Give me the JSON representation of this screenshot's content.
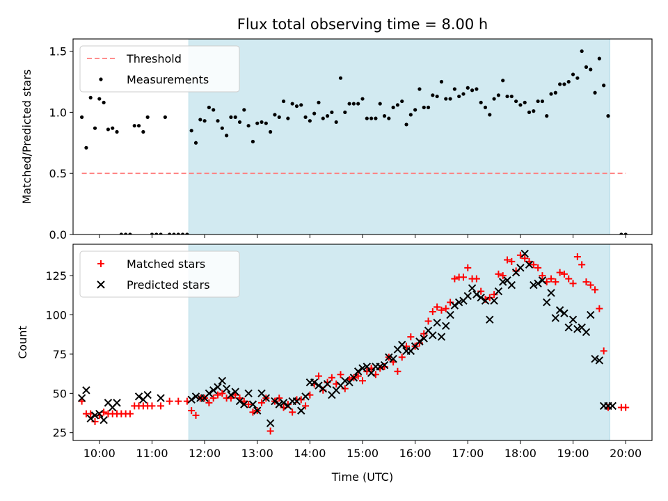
{
  "chart_data": [
    {
      "type": "scatter",
      "title": "Flux total observing time = 8.00 h",
      "xlabel": "",
      "ylabel": "Matched/Predicted stars",
      "ylim": [
        0,
        1.6
      ],
      "yticks": [
        "0.0",
        "0.5",
        "1.0",
        "1.5"
      ],
      "ytick_values": [
        0,
        0.5,
        1.0,
        1.5
      ],
      "xlim_hours": [
        9.5,
        20.5
      ],
      "grid": false,
      "legend": "top-left",
      "observing_window": {
        "start": "11:42",
        "end": "19:42",
        "color": "#add8e6"
      },
      "threshold": {
        "name": "Threshold",
        "value": 0.5,
        "x_start": "09:40",
        "x_end": "20:00",
        "color": "#ff7f7f"
      },
      "series": [
        {
          "name": "Measurements",
          "color": "#000000",
          "x": [
            "09:40",
            "09:45",
            "09:50",
            "09:55",
            "10:00",
            "10:05",
            "10:10",
            "10:15",
            "10:20",
            "10:25",
            "10:30",
            "10:35",
            "10:40",
            "10:45",
            "10:50",
            "10:55",
            "11:00",
            "11:05",
            "11:10",
            "11:15",
            "11:20",
            "11:25",
            "11:30",
            "11:35",
            "11:40",
            "11:45",
            "11:50",
            "11:55",
            "12:00",
            "12:05",
            "12:10",
            "12:15",
            "12:20",
            "12:25",
            "12:30",
            "12:35",
            "12:40",
            "12:45",
            "12:50",
            "12:55",
            "13:00",
            "13:05",
            "13:10",
            "13:15",
            "13:20",
            "13:25",
            "13:30",
            "13:35",
            "13:40",
            "13:45",
            "13:50",
            "13:55",
            "14:00",
            "14:05",
            "14:10",
            "14:15",
            "14:20",
            "14:25",
            "14:30",
            "14:35",
            "14:40",
            "14:45",
            "14:50",
            "14:55",
            "15:00",
            "15:05",
            "15:10",
            "15:15",
            "15:20",
            "15:25",
            "15:30",
            "15:35",
            "15:40",
            "15:45",
            "15:50",
            "15:55",
            "16:00",
            "16:05",
            "16:10",
            "16:15",
            "16:20",
            "16:25",
            "16:30",
            "16:35",
            "16:40",
            "16:45",
            "16:50",
            "16:55",
            "17:00",
            "17:05",
            "17:10",
            "17:15",
            "17:20",
            "17:25",
            "17:30",
            "17:35",
            "17:40",
            "17:45",
            "17:50",
            "17:55",
            "18:00",
            "18:05",
            "18:10",
            "18:15",
            "18:20",
            "18:25",
            "18:30",
            "18:35",
            "18:40",
            "18:45",
            "18:50",
            "18:55",
            "19:00",
            "19:05",
            "19:10",
            "19:15",
            "19:20",
            "19:25",
            "19:30",
            "19:35",
            "19:40",
            "19:55",
            "20:00"
          ],
          "y": [
            0.96,
            0.71,
            1.12,
            0.87,
            1.11,
            1.08,
            0.86,
            0.87,
            0.84,
            0,
            0,
            0,
            0.89,
            0.89,
            0.84,
            0.96,
            0,
            0,
            0,
            0.96,
            0,
            0,
            0,
            0,
            0,
            0.85,
            0.75,
            0.94,
            0.93,
            1.04,
            1.02,
            0.93,
            0.87,
            0.81,
            0.96,
            0.96,
            0.92,
            1.02,
            0.89,
            0.76,
            0.91,
            0.92,
            0.91,
            0.84,
            0.98,
            0.96,
            1.09,
            0.95,
            1.07,
            1.05,
            1.06,
            0.96,
            0.93,
            0.99,
            1.08,
            0.95,
            0.97,
            1.0,
            0.92,
            1.28,
            1.0,
            1.07,
            1.07,
            1.07,
            1.11,
            0.95,
            0.95,
            0.95,
            1.07,
            0.97,
            0.95,
            1.04,
            1.06,
            1.09,
            0.9,
            0.98,
            1.02,
            1.19,
            1.04,
            1.04,
            1.14,
            1.13,
            1.25,
            1.11,
            1.11,
            1.19,
            1.13,
            1.15,
            1.2,
            1.18,
            1.19,
            1.08,
            1.04,
            0.98,
            1.11,
            1.14,
            1.26,
            1.13,
            1.13,
            1.09,
            1.06,
            1.08,
            1.0,
            1.01,
            1.09,
            1.09,
            0.97,
            1.15,
            1.16,
            1.23,
            1.23,
            1.25,
            1.31,
            1.28,
            1.5,
            1.37,
            1.35,
            1.16,
            1.44,
            1.22,
            0.97,
            0,
            0
          ]
        }
      ]
    },
    {
      "type": "scatter",
      "title": "",
      "xlabel": "Time (UTC)",
      "ylabel": "Count",
      "ylim": [
        20,
        145
      ],
      "yticks": [
        "25",
        "50",
        "75",
        "100",
        "125"
      ],
      "ytick_values": [
        25,
        50,
        75,
        100,
        125
      ],
      "xlim_hours": [
        9.5,
        20.5
      ],
      "xticks": [
        "10:00",
        "11:00",
        "12:00",
        "13:00",
        "14:00",
        "15:00",
        "16:00",
        "17:00",
        "18:00",
        "19:00",
        "20:00"
      ],
      "xtick_values": [
        10,
        11,
        12,
        13,
        14,
        15,
        16,
        17,
        18,
        19,
        20
      ],
      "grid": false,
      "legend": "top-left",
      "observing_window": {
        "start": "11:42",
        "end": "19:42",
        "color": "#add8e6"
      },
      "series": [
        {
          "name": "Matched stars",
          "marker": "plus",
          "color": "#ff0000",
          "x": [
            "09:40",
            "09:45",
            "09:50",
            "09:55",
            "10:00",
            "10:05",
            "10:10",
            "10:15",
            "10:20",
            "10:25",
            "10:30",
            "10:35",
            "10:40",
            "10:45",
            "10:50",
            "10:55",
            "11:00",
            "11:10",
            "11:20",
            "11:30",
            "11:40",
            "11:45",
            "11:50",
            "11:55",
            "12:00",
            "12:05",
            "12:10",
            "12:15",
            "12:20",
            "12:25",
            "12:30",
            "12:35",
            "12:40",
            "12:45",
            "12:50",
            "12:55",
            "13:00",
            "13:05",
            "13:10",
            "13:15",
            "13:20",
            "13:25",
            "13:30",
            "13:35",
            "13:40",
            "13:45",
            "13:50",
            "13:55",
            "14:00",
            "14:05",
            "14:10",
            "14:15",
            "14:20",
            "14:25",
            "14:30",
            "14:35",
            "14:40",
            "14:45",
            "14:50",
            "14:55",
            "15:00",
            "15:05",
            "15:10",
            "15:15",
            "15:20",
            "15:25",
            "15:30",
            "15:35",
            "15:40",
            "15:45",
            "15:50",
            "15:55",
            "16:00",
            "16:05",
            "16:10",
            "16:15",
            "16:20",
            "16:25",
            "16:30",
            "16:35",
            "16:40",
            "16:45",
            "16:50",
            "16:55",
            "17:00",
            "17:05",
            "17:10",
            "17:15",
            "17:20",
            "17:25",
            "17:30",
            "17:35",
            "17:40",
            "17:45",
            "17:50",
            "17:55",
            "18:00",
            "18:05",
            "18:10",
            "18:15",
            "18:20",
            "18:25",
            "18:30",
            "18:35",
            "18:40",
            "18:45",
            "18:50",
            "18:55",
            "19:00",
            "19:05",
            "19:10",
            "19:15",
            "19:20",
            "19:25",
            "19:30",
            "19:35",
            "19:40",
            "19:55",
            "20:00"
          ],
          "y": [
            45,
            37,
            37,
            32,
            36,
            38,
            37,
            37,
            37,
            37,
            37,
            37,
            42,
            42,
            42,
            42,
            42,
            42,
            45,
            45,
            45,
            39,
            36,
            47,
            47,
            44,
            47,
            49,
            50,
            47,
            47,
            49,
            47,
            45,
            43,
            38,
            39,
            44,
            47,
            26,
            45,
            47,
            41,
            43,
            38,
            46,
            46,
            42,
            49,
            56,
            61,
            52,
            57,
            60,
            56,
            62,
            53,
            59,
            60,
            61,
            58,
            64,
            66,
            62,
            66,
            67,
            73,
            70,
            64,
            73,
            80,
            86,
            80,
            82,
            88,
            96,
            102,
            105,
            103,
            104,
            108,
            123,
            124,
            124,
            130,
            123,
            123,
            115,
            110,
            111,
            113,
            126,
            125,
            135,
            134,
            128,
            138,
            136,
            134,
            132,
            130,
            125,
            121,
            123,
            121,
            127,
            126,
            123,
            120,
            137,
            132,
            121,
            119,
            116,
            104,
            77,
            41,
            41,
            41
          ],
          "render_note": ""
        },
        {
          "name": "Predicted stars",
          "marker": "x",
          "color": "#000000",
          "x": [
            "09:40",
            "09:45",
            "09:50",
            "09:55",
            "10:00",
            "10:05",
            "10:10",
            "10:15",
            "10:20",
            "10:45",
            "10:50",
            "10:55",
            "11:10",
            "11:45",
            "11:50",
            "11:55",
            "12:00",
            "12:05",
            "12:10",
            "12:15",
            "12:20",
            "12:25",
            "12:30",
            "12:35",
            "12:40",
            "12:45",
            "12:50",
            "12:55",
            "13:00",
            "13:05",
            "13:10",
            "13:15",
            "13:20",
            "13:25",
            "13:30",
            "13:35",
            "13:40",
            "13:45",
            "13:50",
            "13:55",
            "14:00",
            "14:05",
            "14:10",
            "14:15",
            "14:20",
            "14:25",
            "14:30",
            "14:35",
            "14:40",
            "14:45",
            "14:50",
            "14:55",
            "15:00",
            "15:05",
            "15:10",
            "15:15",
            "15:20",
            "15:25",
            "15:30",
            "15:35",
            "15:40",
            "15:45",
            "15:50",
            "15:55",
            "16:00",
            "16:05",
            "16:10",
            "16:15",
            "16:20",
            "16:25",
            "16:30",
            "16:35",
            "16:40",
            "16:45",
            "16:50",
            "16:55",
            "17:00",
            "17:05",
            "17:10",
            "17:15",
            "17:20",
            "17:25",
            "17:30",
            "17:35",
            "17:40",
            "17:45",
            "17:50",
            "17:55",
            "18:00",
            "18:05",
            "18:10",
            "18:15",
            "18:20",
            "18:25",
            "18:30",
            "18:35",
            "18:40",
            "18:45",
            "18:50",
            "18:55",
            "19:00",
            "19:05",
            "19:10",
            "19:15",
            "19:20",
            "19:25",
            "19:30",
            "19:35",
            "19:40",
            "19:45"
          ],
          "y": [
            47,
            52,
            34,
            36,
            37,
            33,
            44,
            41,
            44,
            48,
            46,
            49,
            47,
            46,
            48,
            47,
            47,
            50,
            52,
            54,
            58,
            53,
            49,
            51,
            45,
            43,
            50,
            43,
            39,
            50,
            47,
            31,
            45,
            43,
            44,
            42,
            45,
            45,
            39,
            48,
            57,
            57,
            55,
            53,
            56,
            49,
            52,
            55,
            58,
            57,
            60,
            64,
            66,
            67,
            63,
            67,
            67,
            68,
            73,
            72,
            78,
            81,
            77,
            77,
            80,
            83,
            85,
            90,
            87,
            95,
            86,
            93,
            100,
            106,
            108,
            109,
            112,
            117,
            113,
            111,
            109,
            97,
            109,
            115,
            121,
            122,
            119,
            127,
            130,
            139,
            132,
            119,
            120,
            122,
            108,
            114,
            98,
            103,
            101,
            92,
            97,
            91,
            92,
            89,
            100,
            72,
            71,
            42,
            42,
            42
          ]
        }
      ]
    }
  ]
}
